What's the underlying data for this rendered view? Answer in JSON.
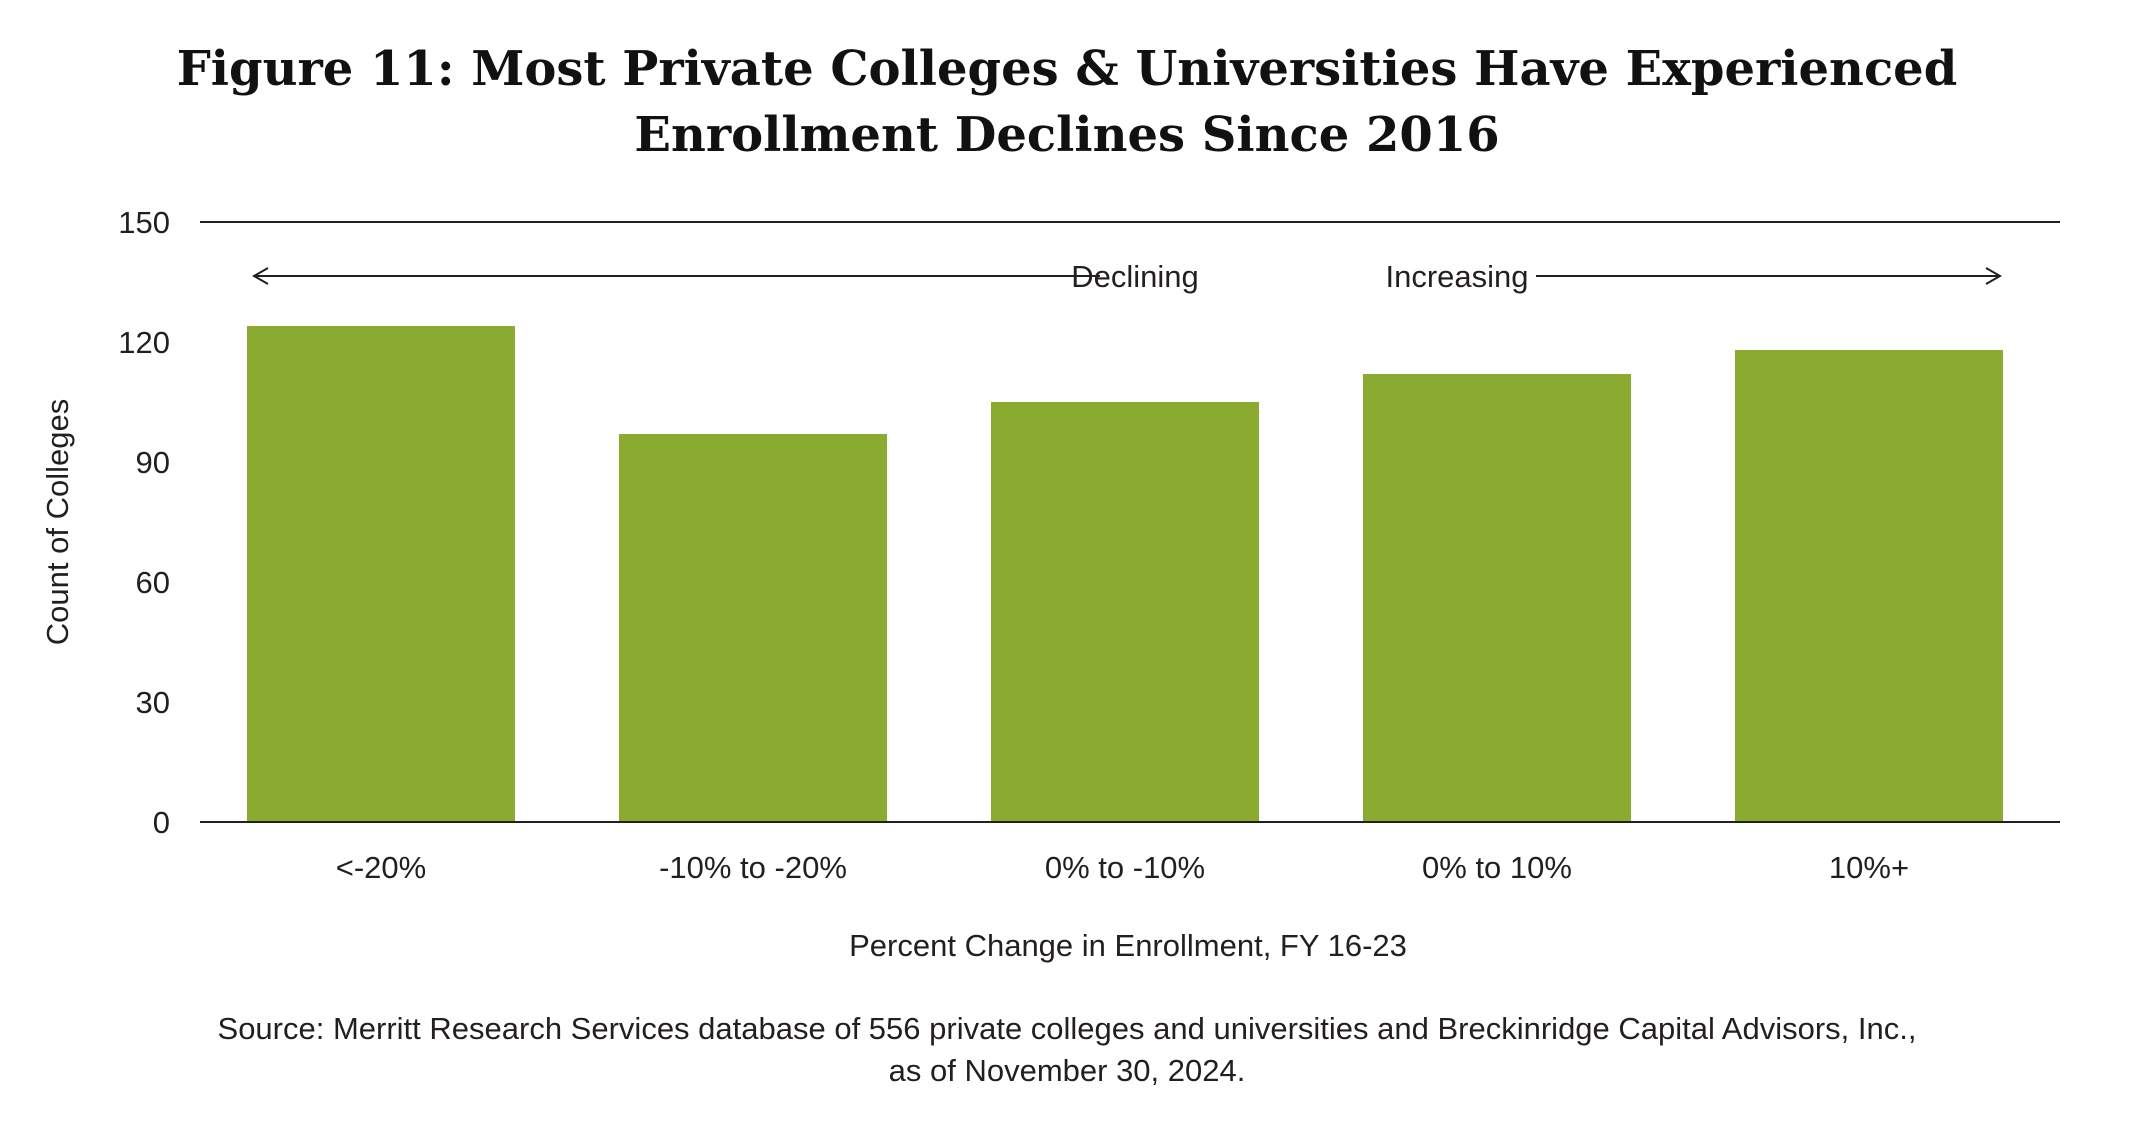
{
  "title": {
    "line1": "Figure 11: Most Private Colleges & Universities Have Experienced",
    "line2": "Enrollment Declines Since 2016"
  },
  "chart_data": {
    "type": "bar",
    "categories": [
      "<-20%",
      "-10% to -20%",
      "0% to -10%",
      "0% to 10%",
      "10%+"
    ],
    "values": [
      124,
      97,
      105,
      112,
      118
    ],
    "xlabel": "Percent Change in Enrollment, FY 16-23",
    "ylabel": "Count of Colleges",
    "ylim": [
      0,
      150
    ],
    "yticks": [
      0,
      30,
      60,
      90,
      120,
      150
    ],
    "grid": false,
    "annotations": {
      "declining": "Declining",
      "increasing": "Increasing"
    },
    "bar_color": "#8aaa30"
  },
  "source": {
    "line1": "Source: Merritt Research Services database of 556 private colleges and universities and Breckinridge Capital Advisors, Inc.,",
    "line2": "as of November 30, 2024."
  },
  "colors": {
    "bar": "#8aaa30",
    "axis": "#231f20",
    "text": "#231f20"
  }
}
